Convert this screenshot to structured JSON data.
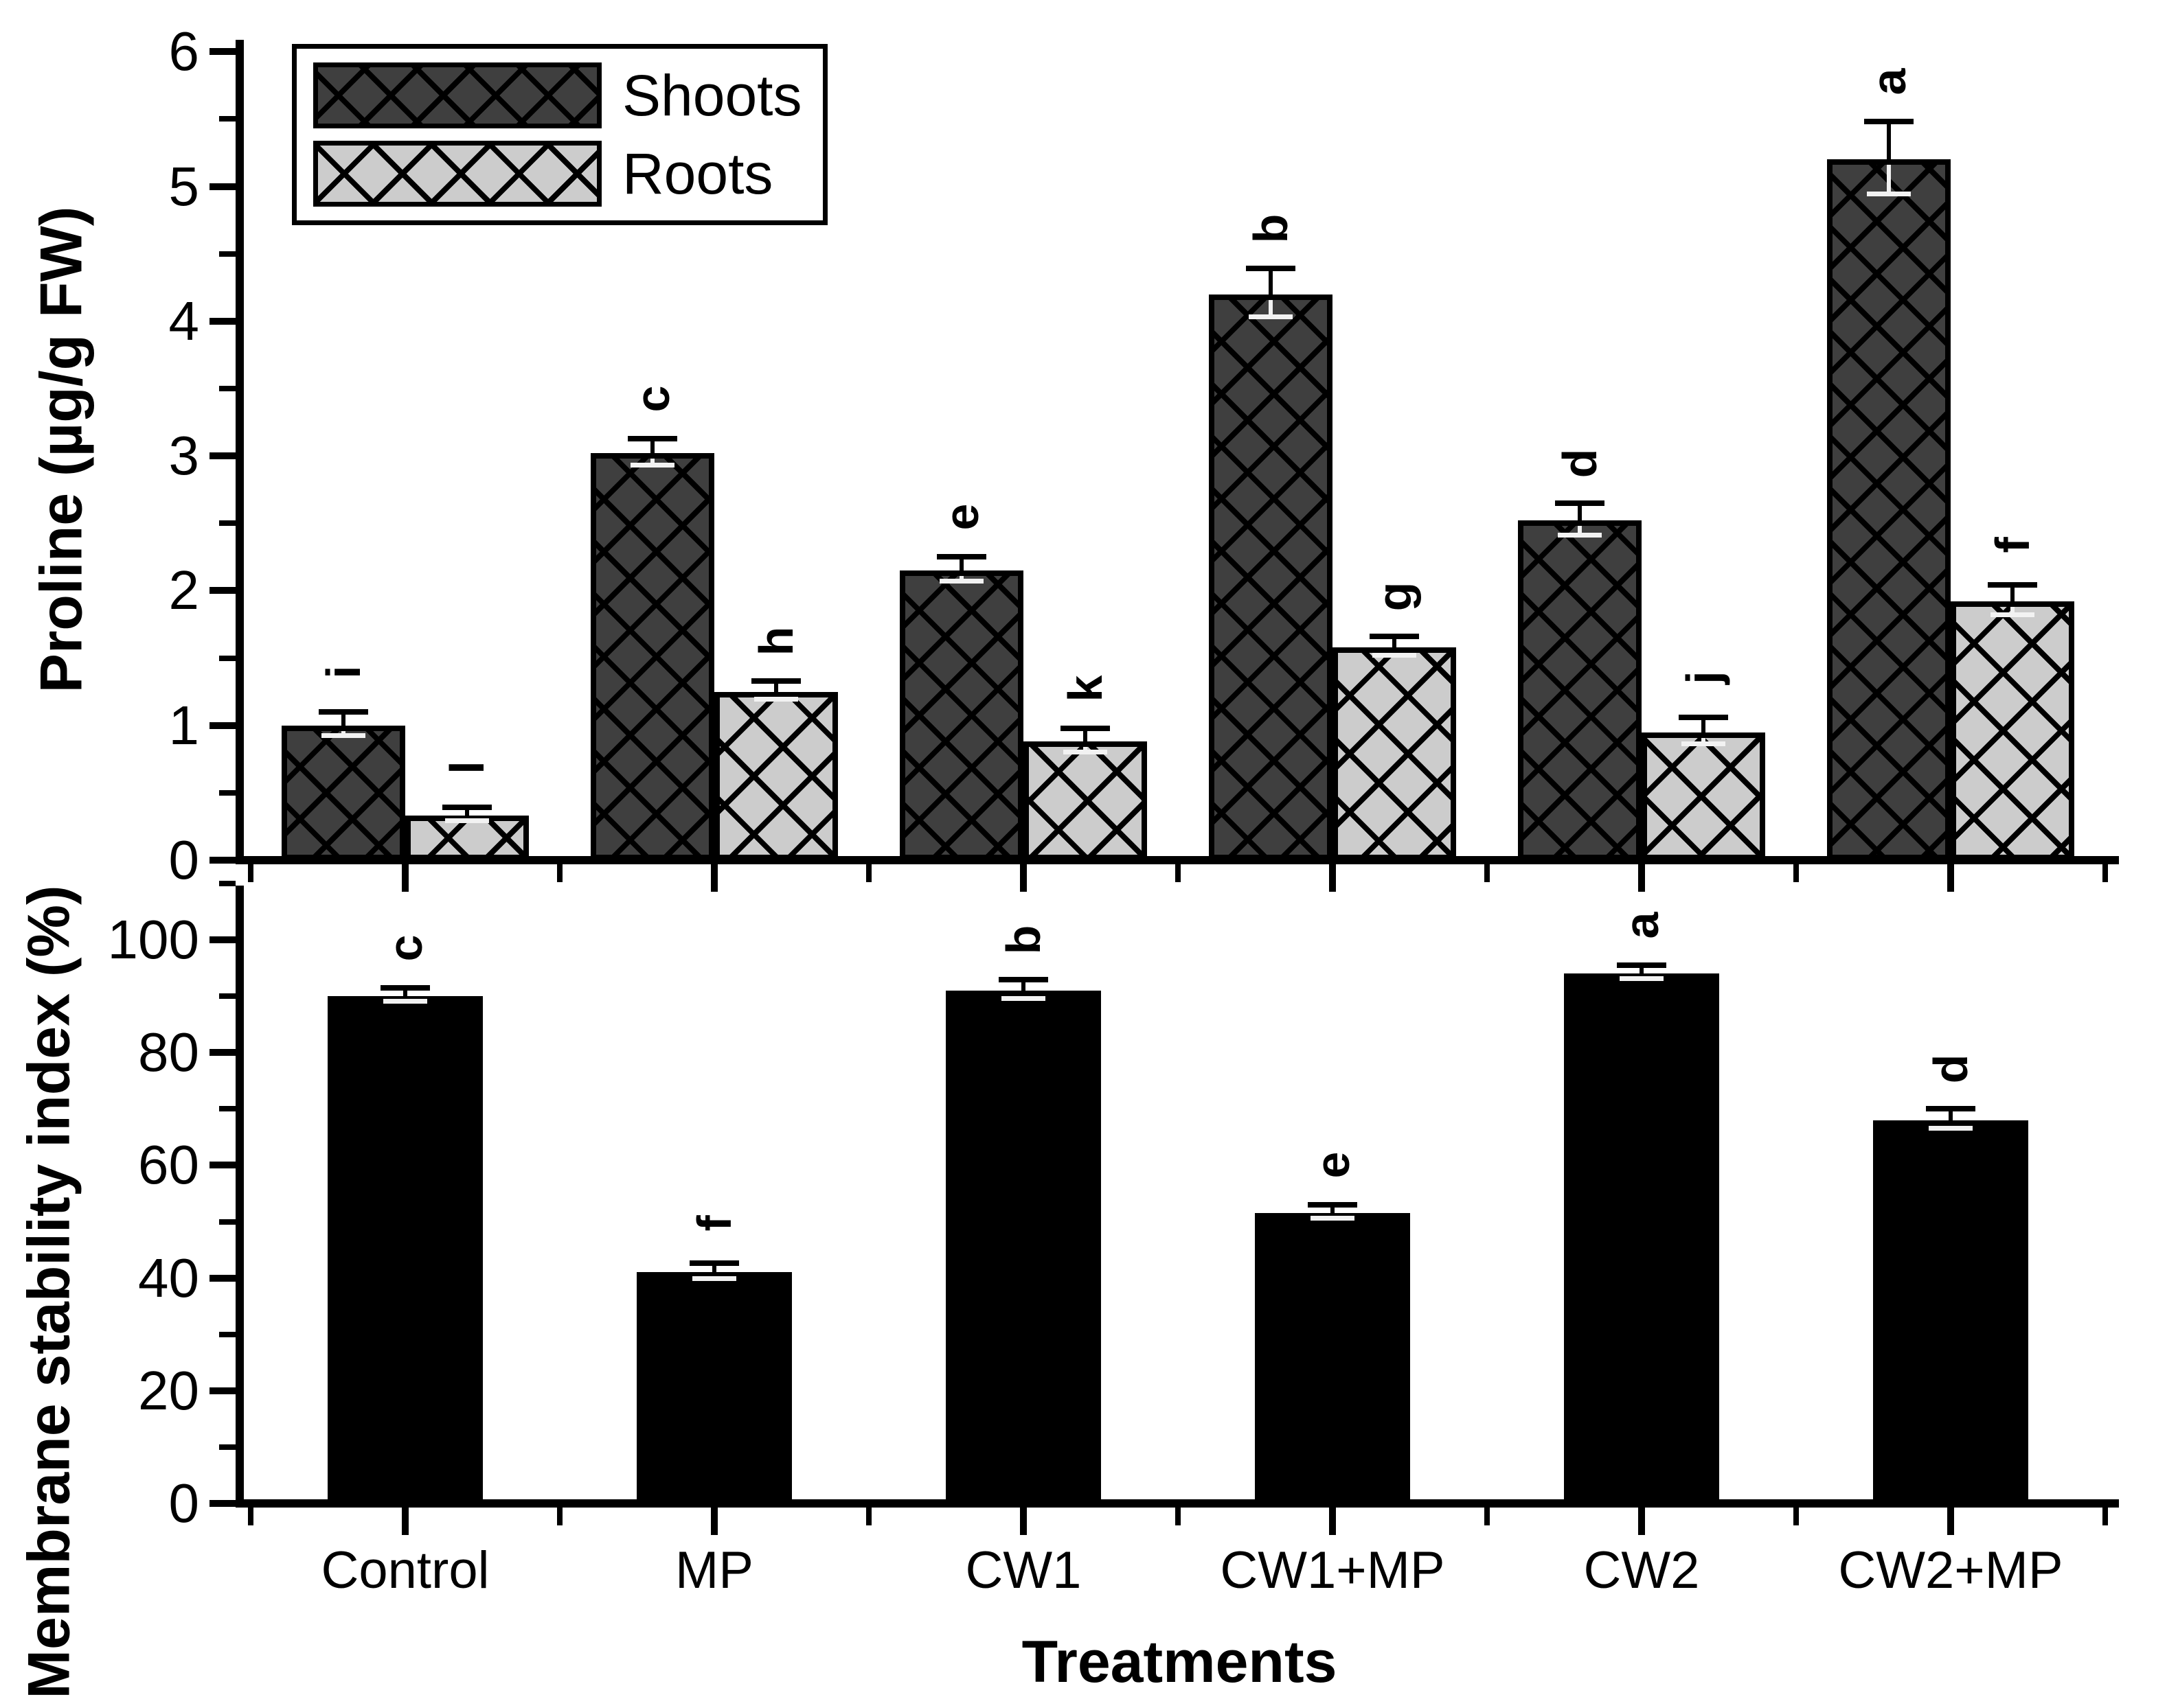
{
  "figure": {
    "background": "#ffffff",
    "x_axis_title": "Treatments",
    "categories": [
      "Control",
      "MP",
      "CW1",
      "CW1+MP",
      "CW2",
      "CW2+MP"
    ]
  },
  "legend": {
    "items": [
      {
        "label": "Shoots",
        "swatch": "dark-crosshatch"
      },
      {
        "label": "Roots",
        "swatch": "light-crosshatch"
      }
    ]
  },
  "colors": {
    "shoots_fill": "#3f3f3f",
    "roots_fill": "#cccccc",
    "msi_fill": "#000000",
    "hatch": "#000000",
    "axis": "#000000",
    "background": "#ffffff"
  },
  "chart_data": [
    {
      "type": "bar",
      "panel": "top",
      "ylabel": "Proline (µg/g FW)",
      "ylim": [
        0,
        6
      ],
      "ytick_major_step": 1,
      "ytick_minor_step": 0.5,
      "ytick_labels": [
        "0",
        "1",
        "2",
        "3",
        "4",
        "5",
        "6"
      ],
      "grid": false,
      "legend_position": "top-left-inside",
      "categories": [
        "Control",
        "MP",
        "CW1",
        "CW1+MP",
        "CW2",
        "CW2+MP"
      ],
      "series": [
        {
          "name": "Shoots",
          "values": [
            1.0,
            3.02,
            2.15,
            4.2,
            2.52,
            5.2
          ],
          "errors": [
            0.08,
            0.09,
            0.08,
            0.17,
            0.11,
            0.26
          ],
          "letters": [
            "i",
            "c",
            "e",
            "b",
            "d",
            "a"
          ]
        },
        {
          "name": "Roots",
          "values": [
            0.33,
            1.25,
            0.88,
            1.58,
            0.95,
            1.92
          ],
          "errors": [
            0.04,
            0.06,
            0.08,
            0.06,
            0.09,
            0.1
          ],
          "letters": [
            "l",
            "h",
            "k",
            "g",
            "j",
            "f"
          ]
        }
      ]
    },
    {
      "type": "bar",
      "panel": "bottom",
      "ylabel": "Membrane stability index (%)",
      "xlabel": "Treatments",
      "ylim": [
        0,
        110
      ],
      "ytick_major_step": 20,
      "ytick_minor_step": 10,
      "ytick_labels": [
        "0",
        "20",
        "40",
        "60",
        "80",
        "100"
      ],
      "grid": false,
      "categories": [
        "Control",
        "MP",
        "CW1",
        "CW1+MP",
        "CW2",
        "CW2+MP"
      ],
      "series": [
        {
          "name": "Membrane stability index",
          "values": [
            90,
            41,
            91,
            51.5,
            94,
            68
          ],
          "errors": [
            1.0,
            1.2,
            1.5,
            1.0,
            1.0,
            1.5
          ],
          "letters": [
            "c",
            "f",
            "b",
            "e",
            "a",
            "d"
          ]
        }
      ]
    }
  ]
}
